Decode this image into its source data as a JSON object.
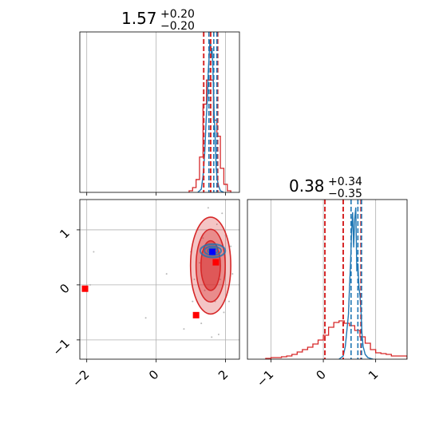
{
  "chart_data": {
    "type": "corner",
    "colors": {
      "red": "#d62728",
      "blue": "#1f77b4",
      "grid": "#b0b0b0",
      "marker_red": "#ff0000",
      "marker_blue": "#0000ff"
    },
    "parameters": [
      {
        "title_value": "1.57",
        "title_upper": "+0.20",
        "title_lower": "−0.20"
      },
      {
        "title_value": "0.38",
        "title_upper": "+0.34",
        "title_lower": "−0.35"
      }
    ],
    "x_ticks_param1": [
      "−2",
      "0",
      "2"
    ],
    "y_ticks_param2": [
      "−1",
      "0",
      "1"
    ],
    "x_ticks_param2": [
      "−1",
      "0",
      "1"
    ],
    "xlim_param1": [
      -2.2,
      2.4
    ],
    "ylim_param2": [
      -1.35,
      1.55
    ],
    "xlim_param2": [
      -1.45,
      1.6
    ],
    "hist_param1": {
      "red_quantiles": [
        1.37,
        1.57,
        1.77
      ],
      "blue_quantiles": [
        1.52,
        1.66,
        1.75
      ],
      "red_hist": {
        "edges": [
          0.95,
          1.05,
          1.15,
          1.25,
          1.35,
          1.45,
          1.55,
          1.65,
          1.75,
          1.85,
          1.95,
          2.05,
          2.15
        ],
        "counts": [
          0.01,
          0.03,
          0.08,
          0.22,
          0.55,
          0.7,
          0.7,
          0.45,
          0.35,
          0.15,
          0.05,
          0.01
        ]
      },
      "blue_line": {
        "x": [
          1.2,
          1.3,
          1.35,
          1.4,
          1.44,
          1.48,
          1.5,
          1.52,
          1.55,
          1.57,
          1.59,
          1.61,
          1.63,
          1.65,
          1.67,
          1.69,
          1.71,
          1.73,
          1.76,
          1.8,
          1.85,
          1.95
        ],
        "y": [
          0.0,
          0.02,
          0.1,
          0.25,
          0.45,
          0.6,
          0.75,
          0.82,
          0.95,
          0.93,
          0.84,
          0.9,
          0.8,
          0.65,
          0.5,
          0.4,
          0.28,
          0.15,
          0.08,
          0.04,
          0.01,
          0.0
        ]
      }
    },
    "hist_param2": {
      "red_quantiles": [
        0.03,
        0.38,
        0.72
      ],
      "blue_quantiles": [
        0.53,
        0.66,
        0.73
      ],
      "red_hist": {
        "edges": [
          -1.1,
          -1.0,
          -0.9,
          -0.8,
          -0.7,
          -0.6,
          -0.5,
          -0.4,
          -0.3,
          -0.2,
          -0.1,
          0.0,
          0.1,
          0.2,
          0.3,
          0.4,
          0.5,
          0.6,
          0.7,
          0.8,
          0.9,
          1.0,
          1.1,
          1.2,
          1.3,
          1.4,
          1.5,
          1.6
        ],
        "counts": [
          0.005,
          0.01,
          0.01,
          0.015,
          0.02,
          0.03,
          0.045,
          0.06,
          0.075,
          0.095,
          0.12,
          0.15,
          0.2,
          0.23,
          0.24,
          0.225,
          0.21,
          0.18,
          0.14,
          0.1,
          0.06,
          0.04,
          0.035,
          0.03,
          0.02,
          0.02,
          0.02
        ]
      },
      "blue_line": {
        "x": [
          0.3,
          0.38,
          0.42,
          0.45,
          0.48,
          0.5,
          0.52,
          0.54,
          0.56,
          0.58,
          0.6,
          0.62,
          0.64,
          0.66,
          0.68,
          0.7,
          0.72,
          0.74,
          0.76,
          0.8,
          0.85,
          0.95
        ],
        "y": [
          0.0,
          0.02,
          0.08,
          0.18,
          0.28,
          0.45,
          0.6,
          0.8,
          0.92,
          0.7,
          0.88,
          0.95,
          0.55,
          0.6,
          0.45,
          0.4,
          0.3,
          0.15,
          0.08,
          0.03,
          0.01,
          0.0
        ]
      }
    },
    "joint": {
      "red_center": [
        1.57,
        0.35
      ],
      "red_contours": [
        {
          "rx": 0.58,
          "ry": 0.88,
          "fill_opacity": 0.45
        },
        {
          "rx": 0.42,
          "ry": 0.66,
          "fill_opacity": 0.6
        },
        {
          "rx": 0.28,
          "ry": 0.45,
          "fill_opacity": 0.85
        }
      ],
      "blue_center": [
        1.63,
        0.62
      ],
      "blue_contours": [
        {
          "rx": 0.36,
          "ry": 0.12
        },
        {
          "rx": 0.24,
          "ry": 0.08
        },
        {
          "rx": 0.14,
          "ry": 0.05
        }
      ],
      "markers_red": [
        [
          -2.05,
          -0.07
        ],
        [
          1.15,
          -0.55
        ],
        [
          1.72,
          0.41
        ]
      ],
      "markers_blue": [
        [
          1.62,
          0.6
        ]
      ],
      "scatter_points": [
        [
          1.2,
          1.0
        ],
        [
          1.9,
          1.3
        ],
        [
          2.0,
          0.9
        ],
        [
          1.1,
          0.1
        ],
        [
          2.1,
          -0.3
        ],
        [
          1.3,
          -0.7
        ],
        [
          1.8,
          -0.9
        ],
        [
          0.3,
          0.2
        ],
        [
          -0.3,
          -0.6
        ],
        [
          1.0,
          0.6
        ],
        [
          2.2,
          0.2
        ],
        [
          1.5,
          1.4
        ],
        [
          1.7,
          -0.3
        ],
        [
          1.4,
          -0.1
        ],
        [
          1.85,
          0.1
        ],
        [
          1.25,
          0.4
        ],
        [
          1.95,
          -0.5
        ],
        [
          0.8,
          -0.8
        ],
        [
          2.15,
          0.7
        ],
        [
          1.05,
          -0.3
        ],
        [
          -1.8,
          0.6
        ],
        [
          -1.9,
          0.0
        ],
        [
          1.6,
          -0.95
        ],
        [
          1.35,
          0.85
        ],
        [
          1.75,
          1.1
        ]
      ]
    }
  }
}
